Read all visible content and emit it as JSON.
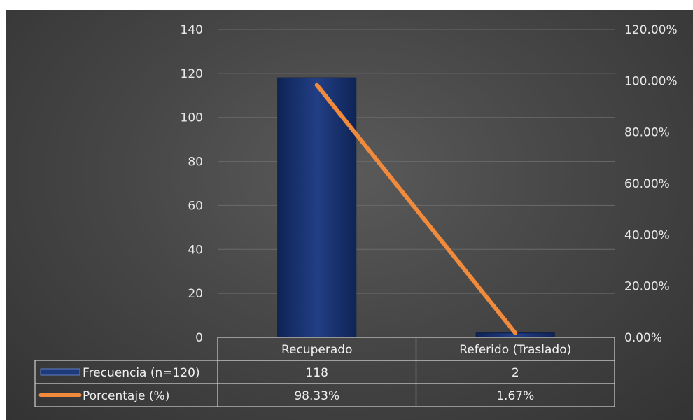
{
  "chart_data": {
    "type": "bar",
    "categories": [
      "Recuperado",
      "Referido (Traslado)"
    ],
    "series": [
      {
        "name": "Frecuencia (n=120)",
        "type": "bar",
        "axis": "left",
        "values": [
          118,
          2
        ],
        "color": "#1f3a7a"
      },
      {
        "name": "Porcentaje (%)",
        "type": "line",
        "axis": "right",
        "values": [
          0.9833,
          0.0167
        ],
        "color": "#f08a3c"
      }
    ],
    "y_left": {
      "range": [
        0,
        140
      ],
      "ticks": [
        "0",
        "20",
        "40",
        "60",
        "80",
        "100",
        "120",
        "140"
      ]
    },
    "y_right": {
      "range": [
        0,
        1.2
      ],
      "ticks": [
        "0.00%",
        "20.00%",
        "40.00%",
        "60.00%",
        "80.00%",
        "100.00%",
        "120.00%"
      ]
    },
    "grid": true,
    "data_table": {
      "rows": [
        {
          "label": "Frecuencia (n=120)",
          "cells": [
            "118",
            "2"
          ]
        },
        {
          "label": "Porcentaje (%)",
          "cells": [
            "98.33%",
            "1.67%"
          ]
        }
      ]
    }
  }
}
